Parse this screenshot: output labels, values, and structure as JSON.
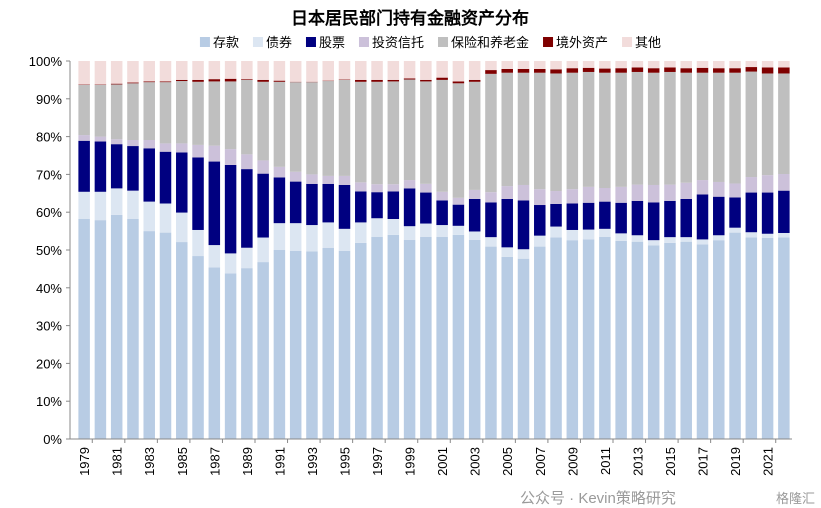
{
  "chart_data": {
    "type": "bar",
    "stacked": true,
    "title": "日本居民部门持有金融资产分布",
    "xlabel": "",
    "ylabel": "",
    "ylim": [
      0,
      100
    ],
    "y_ticks": [
      "0%",
      "10%",
      "20%",
      "30%",
      "40%",
      "50%",
      "60%",
      "70%",
      "80%",
      "90%",
      "100%"
    ],
    "legend_position": "top",
    "categories": [
      "1979",
      "1980",
      "1981",
      "1982",
      "1983",
      "1984",
      "1985",
      "1986",
      "1987",
      "1988",
      "1989",
      "1990",
      "1991",
      "1992",
      "1993",
      "1994",
      "1995",
      "1996",
      "1997",
      "1998",
      "1999",
      "2000",
      "2001",
      "2002",
      "2003",
      "2004",
      "2005",
      "2006",
      "2007",
      "2008",
      "2009",
      "2010",
      "2011",
      "2012",
      "2013",
      "2014",
      "2015",
      "2016",
      "2017",
      "2018",
      "2019",
      "2020",
      "2021",
      "2022"
    ],
    "x_tick_labels": [
      "1979",
      "1981",
      "1983",
      "1985",
      "1987",
      "1989",
      "1991",
      "1993",
      "1995",
      "1997",
      "1999",
      "2001",
      "2003",
      "2005",
      "2007",
      "2009",
      "2011",
      "2013",
      "2015",
      "2017",
      "2019",
      "2021"
    ],
    "series": [
      {
        "name": "存款",
        "color": "#b8cce4",
        "values": [
          58.2,
          57.9,
          59.3,
          58.2,
          55.0,
          54.6,
          52.1,
          48.4,
          45.4,
          43.8,
          45.2,
          46.8,
          50.0,
          49.8,
          49.6,
          50.6,
          49.8,
          51.9,
          53.5,
          54.0,
          52.7,
          53.5,
          53.5,
          54.0,
          52.7,
          50.9,
          48.2,
          47.7,
          50.9,
          53.3,
          52.6,
          52.8,
          53.5,
          52.4,
          52.2,
          51.2,
          51.9,
          52.2,
          51.5,
          52.6,
          54.6,
          53.3,
          53.2,
          53.3
        ]
      },
      {
        "name": "债券",
        "color": "#dce6f2",
        "values": [
          7.2,
          7.5,
          7.0,
          7.5,
          7.8,
          7.7,
          7.8,
          6.9,
          5.9,
          5.3,
          5.4,
          6.5,
          7.1,
          7.3,
          7.0,
          6.7,
          5.8,
          5.4,
          4.9,
          4.2,
          3.6,
          3.5,
          3.1,
          2.4,
          2.2,
          2.5,
          2.5,
          2.5,
          2.9,
          2.9,
          2.7,
          2.6,
          2.1,
          2.0,
          1.7,
          1.4,
          1.5,
          1.2,
          1.3,
          1.3,
          1.3,
          1.4,
          1.1,
          1.2
        ]
      },
      {
        "name": "股票",
        "color": "#000080",
        "values": [
          13.5,
          13.3,
          11.7,
          11.8,
          14.1,
          13.7,
          15.9,
          19.2,
          22.1,
          23.4,
          20.8,
          16.9,
          12.1,
          11.0,
          10.9,
          10.2,
          11.6,
          8.2,
          6.9,
          7.3,
          10.0,
          8.2,
          6.5,
          5.6,
          8.6,
          9.2,
          12.8,
          12.9,
          8.1,
          6.0,
          7.0,
          7.1,
          7.2,
          8.1,
          9.1,
          10.0,
          9.6,
          10.1,
          11.9,
          10.2,
          8.0,
          10.5,
          10.9,
          11.2
        ]
      },
      {
        "name": "投资信托",
        "color": "#ccc1da",
        "values": [
          1.5,
          1.3,
          1.3,
          1.6,
          2.2,
          2.2,
          2.4,
          3.3,
          4.2,
          4.2,
          3.9,
          3.5,
          2.8,
          2.6,
          2.5,
          2.1,
          2.4,
          2.4,
          2.1,
          1.9,
          2.2,
          2.3,
          2.3,
          1.8,
          2.4,
          2.7,
          3.4,
          4.1,
          4.2,
          3.4,
          3.8,
          4.2,
          3.6,
          4.2,
          4.3,
          4.6,
          4.3,
          4.3,
          3.8,
          3.9,
          3.7,
          4.1,
          4.6,
          4.4
        ]
      },
      {
        "name": "保险和养老金",
        "color": "#bfbfbf",
        "values": [
          13.3,
          13.7,
          14.5,
          15.0,
          15.3,
          16.2,
          16.5,
          16.7,
          17.0,
          17.9,
          19.7,
          20.8,
          22.5,
          23.7,
          24.4,
          25.1,
          25.4,
          26.6,
          27.1,
          27.2,
          26.6,
          27.1,
          29.6,
          30.3,
          28.6,
          31.3,
          30.0,
          29.7,
          30.8,
          31.1,
          30.8,
          30.4,
          30.5,
          30.2,
          29.8,
          29.7,
          29.8,
          29.1,
          28.4,
          28.9,
          29.3,
          27.9,
          26.9,
          26.6
        ]
      },
      {
        "name": "境外资产",
        "color": "#7f0000",
        "values": [
          0.1,
          0.1,
          0.2,
          0.2,
          0.2,
          0.2,
          0.3,
          0.5,
          0.6,
          0.7,
          0.2,
          0.5,
          0.3,
          0.1,
          0.1,
          0.1,
          0.1,
          0.5,
          0.5,
          0.4,
          0.3,
          0.4,
          0.6,
          0.5,
          0.5,
          1.0,
          1.0,
          1.0,
          1.0,
          1.1,
          1.2,
          1.1,
          1.1,
          1.2,
          1.2,
          1.2,
          1.2,
          1.2,
          1.3,
          1.2,
          1.2,
          1.2,
          1.6,
          1.6
        ]
      },
      {
        "name": "其他",
        "color": "#f2dcdb",
        "values": [
          6.2,
          6.2,
          6.0,
          5.7,
          5.4,
          5.4,
          5.0,
          5.0,
          4.8,
          4.7,
          4.8,
          5.0,
          5.2,
          5.5,
          5.5,
          5.2,
          4.9,
          5.0,
          5.0,
          5.0,
          4.6,
          5.0,
          4.4,
          5.4,
          5.0,
          2.4,
          2.1,
          2.1,
          2.1,
          2.2,
          1.9,
          1.8,
          2.0,
          1.9,
          1.7,
          1.9,
          1.7,
          1.9,
          1.8,
          1.9,
          1.9,
          1.6,
          1.7,
          1.7
        ]
      }
    ]
  },
  "watermark": {
    "text": "公众号 · Kevin策略研究",
    "logo_text": "格隆汇"
  }
}
